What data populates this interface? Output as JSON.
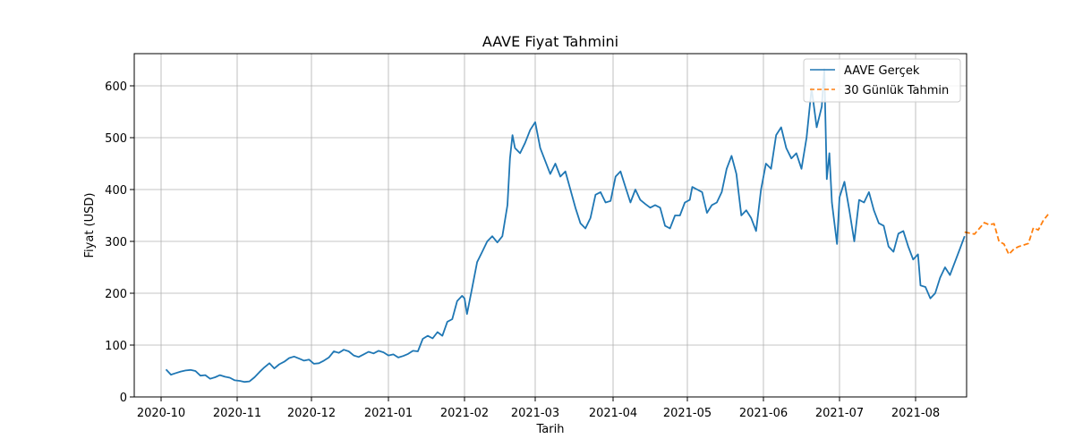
{
  "chart_data": {
    "type": "line",
    "title": "AAVE Fiyat Tahmini",
    "xlabel": "Tarih",
    "ylabel": "Fiyat (USD)",
    "x_ticks": [
      "2020-10",
      "2020-11",
      "2020-12",
      "2021-01",
      "2021-02",
      "2021-03",
      "2021-04",
      "2021-05",
      "2021-06",
      "2021-07",
      "2021-08"
    ],
    "y_ticks": [
      0,
      100,
      200,
      300,
      400,
      500,
      600
    ],
    "xlim": [
      "2020-09-26",
      "2021-08-15"
    ],
    "ylim": [
      0,
      660
    ],
    "grid": true,
    "legend_position": "top-right",
    "series": [
      {
        "name": "AAVE Gerçek",
        "color": "#1f77b4",
        "style": "solid",
        "points": [
          [
            "2020-10-03",
            53
          ],
          [
            "2020-10-05",
            43
          ],
          [
            "2020-10-07",
            46
          ],
          [
            "2020-10-09",
            49
          ],
          [
            "2020-10-11",
            51
          ],
          [
            "2020-10-13",
            52
          ],
          [
            "2020-10-15",
            50
          ],
          [
            "2020-10-17",
            41
          ],
          [
            "2020-10-19",
            42
          ],
          [
            "2020-10-21",
            35
          ],
          [
            "2020-10-23",
            38
          ],
          [
            "2020-10-25",
            42
          ],
          [
            "2020-10-27",
            39
          ],
          [
            "2020-10-29",
            37
          ],
          [
            "2020-10-31",
            32
          ],
          [
            "2020-11-02",
            31
          ],
          [
            "2020-11-04",
            29
          ],
          [
            "2020-11-06",
            30
          ],
          [
            "2020-11-08",
            38
          ],
          [
            "2020-11-10",
            48
          ],
          [
            "2020-11-12",
            57
          ],
          [
            "2020-11-14",
            65
          ],
          [
            "2020-11-16",
            55
          ],
          [
            "2020-11-18",
            63
          ],
          [
            "2020-11-20",
            68
          ],
          [
            "2020-11-22",
            75
          ],
          [
            "2020-11-24",
            78
          ],
          [
            "2020-11-26",
            74
          ],
          [
            "2020-11-28",
            70
          ],
          [
            "2020-11-30",
            72
          ],
          [
            "2020-12-02",
            64
          ],
          [
            "2020-12-04",
            65
          ],
          [
            "2020-12-06",
            70
          ],
          [
            "2020-12-08",
            76
          ],
          [
            "2020-12-10",
            88
          ],
          [
            "2020-12-12",
            85
          ],
          [
            "2020-12-14",
            91
          ],
          [
            "2020-12-16",
            88
          ],
          [
            "2020-12-18",
            80
          ],
          [
            "2020-12-20",
            77
          ],
          [
            "2020-12-22",
            82
          ],
          [
            "2020-12-24",
            87
          ],
          [
            "2020-12-26",
            84
          ],
          [
            "2020-12-28",
            89
          ],
          [
            "2020-12-30",
            86
          ],
          [
            "2021-01-01",
            80
          ],
          [
            "2021-01-03",
            82
          ],
          [
            "2021-01-05",
            76
          ],
          [
            "2021-01-07",
            79
          ],
          [
            "2021-01-09",
            83
          ],
          [
            "2021-01-11",
            89
          ],
          [
            "2021-01-13",
            88
          ],
          [
            "2021-01-15",
            112
          ],
          [
            "2021-01-17",
            118
          ],
          [
            "2021-01-19",
            113
          ],
          [
            "2021-01-21",
            125
          ],
          [
            "2021-01-23",
            118
          ],
          [
            "2021-01-25",
            145
          ],
          [
            "2021-01-27",
            150
          ],
          [
            "2021-01-29",
            185
          ],
          [
            "2021-01-31",
            195
          ],
          [
            "2021-02-01",
            190
          ],
          [
            "2021-02-02",
            160
          ],
          [
            "2021-02-04",
            210
          ],
          [
            "2021-02-06",
            260
          ],
          [
            "2021-02-08",
            280
          ],
          [
            "2021-02-10",
            300
          ],
          [
            "2021-02-12",
            310
          ],
          [
            "2021-02-14",
            298
          ],
          [
            "2021-02-16",
            310
          ],
          [
            "2021-02-18",
            370
          ],
          [
            "2021-02-19",
            460
          ],
          [
            "2021-02-20",
            505
          ],
          [
            "2021-02-21",
            480
          ],
          [
            "2021-02-23",
            470
          ],
          [
            "2021-02-25",
            490
          ],
          [
            "2021-02-27",
            515
          ],
          [
            "2021-03-01",
            530
          ],
          [
            "2021-03-03",
            480
          ],
          [
            "2021-03-05",
            455
          ],
          [
            "2021-03-07",
            430
          ],
          [
            "2021-03-09",
            450
          ],
          [
            "2021-03-11",
            425
          ],
          [
            "2021-03-13",
            435
          ],
          [
            "2021-03-15",
            400
          ],
          [
            "2021-03-17",
            365
          ],
          [
            "2021-03-19",
            335
          ],
          [
            "2021-03-21",
            325
          ],
          [
            "2021-03-23",
            345
          ],
          [
            "2021-03-25",
            390
          ],
          [
            "2021-03-27",
            395
          ],
          [
            "2021-03-29",
            375
          ],
          [
            "2021-03-31",
            378
          ],
          [
            "2021-04-02",
            425
          ],
          [
            "2021-04-04",
            435
          ],
          [
            "2021-04-06",
            405
          ],
          [
            "2021-04-08",
            375
          ],
          [
            "2021-04-10",
            400
          ],
          [
            "2021-04-12",
            380
          ],
          [
            "2021-04-14",
            372
          ],
          [
            "2021-04-16",
            365
          ],
          [
            "2021-04-18",
            370
          ],
          [
            "2021-04-20",
            365
          ],
          [
            "2021-04-22",
            330
          ],
          [
            "2021-04-24",
            325
          ],
          [
            "2021-04-26",
            350
          ],
          [
            "2021-04-28",
            350
          ],
          [
            "2021-04-30",
            375
          ],
          [
            "2021-05-02",
            380
          ],
          [
            "2021-05-03",
            405
          ],
          [
            "2021-05-05",
            400
          ],
          [
            "2021-05-07",
            395
          ],
          [
            "2021-05-09",
            355
          ],
          [
            "2021-05-11",
            370
          ],
          [
            "2021-05-13",
            375
          ],
          [
            "2021-05-15",
            395
          ],
          [
            "2021-05-17",
            440
          ],
          [
            "2021-05-19",
            465
          ],
          [
            "2021-05-21",
            430
          ],
          [
            "2021-05-23",
            350
          ],
          [
            "2021-05-25",
            360
          ],
          [
            "2021-05-27",
            345
          ],
          [
            "2021-05-29",
            320
          ],
          [
            "2021-05-31",
            400
          ],
          [
            "2021-06-02",
            450
          ],
          [
            "2021-06-04",
            440
          ],
          [
            "2021-06-06",
            505
          ],
          [
            "2021-06-08",
            520
          ],
          [
            "2021-06-10",
            480
          ],
          [
            "2021-06-12",
            460
          ],
          [
            "2021-06-14",
            470
          ],
          [
            "2021-06-16",
            440
          ],
          [
            "2021-06-18",
            500
          ],
          [
            "2021-06-20",
            595
          ],
          [
            "2021-06-22",
            520
          ],
          [
            "2021-06-24",
            560
          ],
          [
            "2021-06-25",
            632
          ],
          [
            "2021-06-26",
            420
          ],
          [
            "2021-06-27",
            470
          ],
          [
            "2021-06-28",
            375
          ],
          [
            "2021-06-30",
            295
          ],
          [
            "2021-07-01",
            385
          ],
          [
            "2021-07-03",
            415
          ],
          [
            "2021-07-05",
            360
          ],
          [
            "2021-07-07",
            300
          ],
          [
            "2021-07-09",
            380
          ],
          [
            "2021-07-11",
            375
          ],
          [
            "2021-07-13",
            395
          ],
          [
            "2021-07-15",
            360
          ],
          [
            "2021-07-17",
            335
          ],
          [
            "2021-07-19",
            330
          ],
          [
            "2021-07-21",
            290
          ],
          [
            "2021-07-23",
            280
          ],
          [
            "2021-07-25",
            315
          ],
          [
            "2021-07-27",
            320
          ],
          [
            "2021-07-29",
            290
          ],
          [
            "2021-07-31",
            265
          ],
          [
            "2021-08-02",
            275
          ],
          [
            "2021-08-03",
            215
          ],
          [
            "2021-08-05",
            212
          ],
          [
            "2021-08-07",
            190
          ],
          [
            "2021-08-09",
            200
          ],
          [
            "2021-08-11",
            230
          ],
          [
            "2021-08-13",
            250
          ],
          [
            "2021-08-15",
            235
          ],
          [
            "2021-08-17",
            260
          ],
          [
            "2021-08-19",
            285
          ],
          [
            "2021-08-21",
            310
          ]
        ]
      },
      {
        "name": "30 Günlük Tahmin",
        "color": "#ff7f0e",
        "style": "dashed",
        "points": [
          [
            "2021-08-21",
            318
          ],
          [
            "2021-08-23",
            316
          ],
          [
            "2021-08-25",
            314
          ],
          [
            "2021-08-27",
            325
          ],
          [
            "2021-08-29",
            336
          ],
          [
            "2021-08-31",
            332
          ],
          [
            "2021-09-02",
            334
          ],
          [
            "2021-09-04",
            300
          ],
          [
            "2021-09-06",
            295
          ],
          [
            "2021-09-08",
            275
          ],
          [
            "2021-09-10",
            285
          ],
          [
            "2021-09-12",
            290
          ],
          [
            "2021-09-14",
            293
          ],
          [
            "2021-09-16",
            296
          ],
          [
            "2021-09-18",
            326
          ],
          [
            "2021-09-20",
            322
          ],
          [
            "2021-09-22",
            340
          ],
          [
            "2021-09-24",
            352
          ]
        ]
      }
    ]
  }
}
